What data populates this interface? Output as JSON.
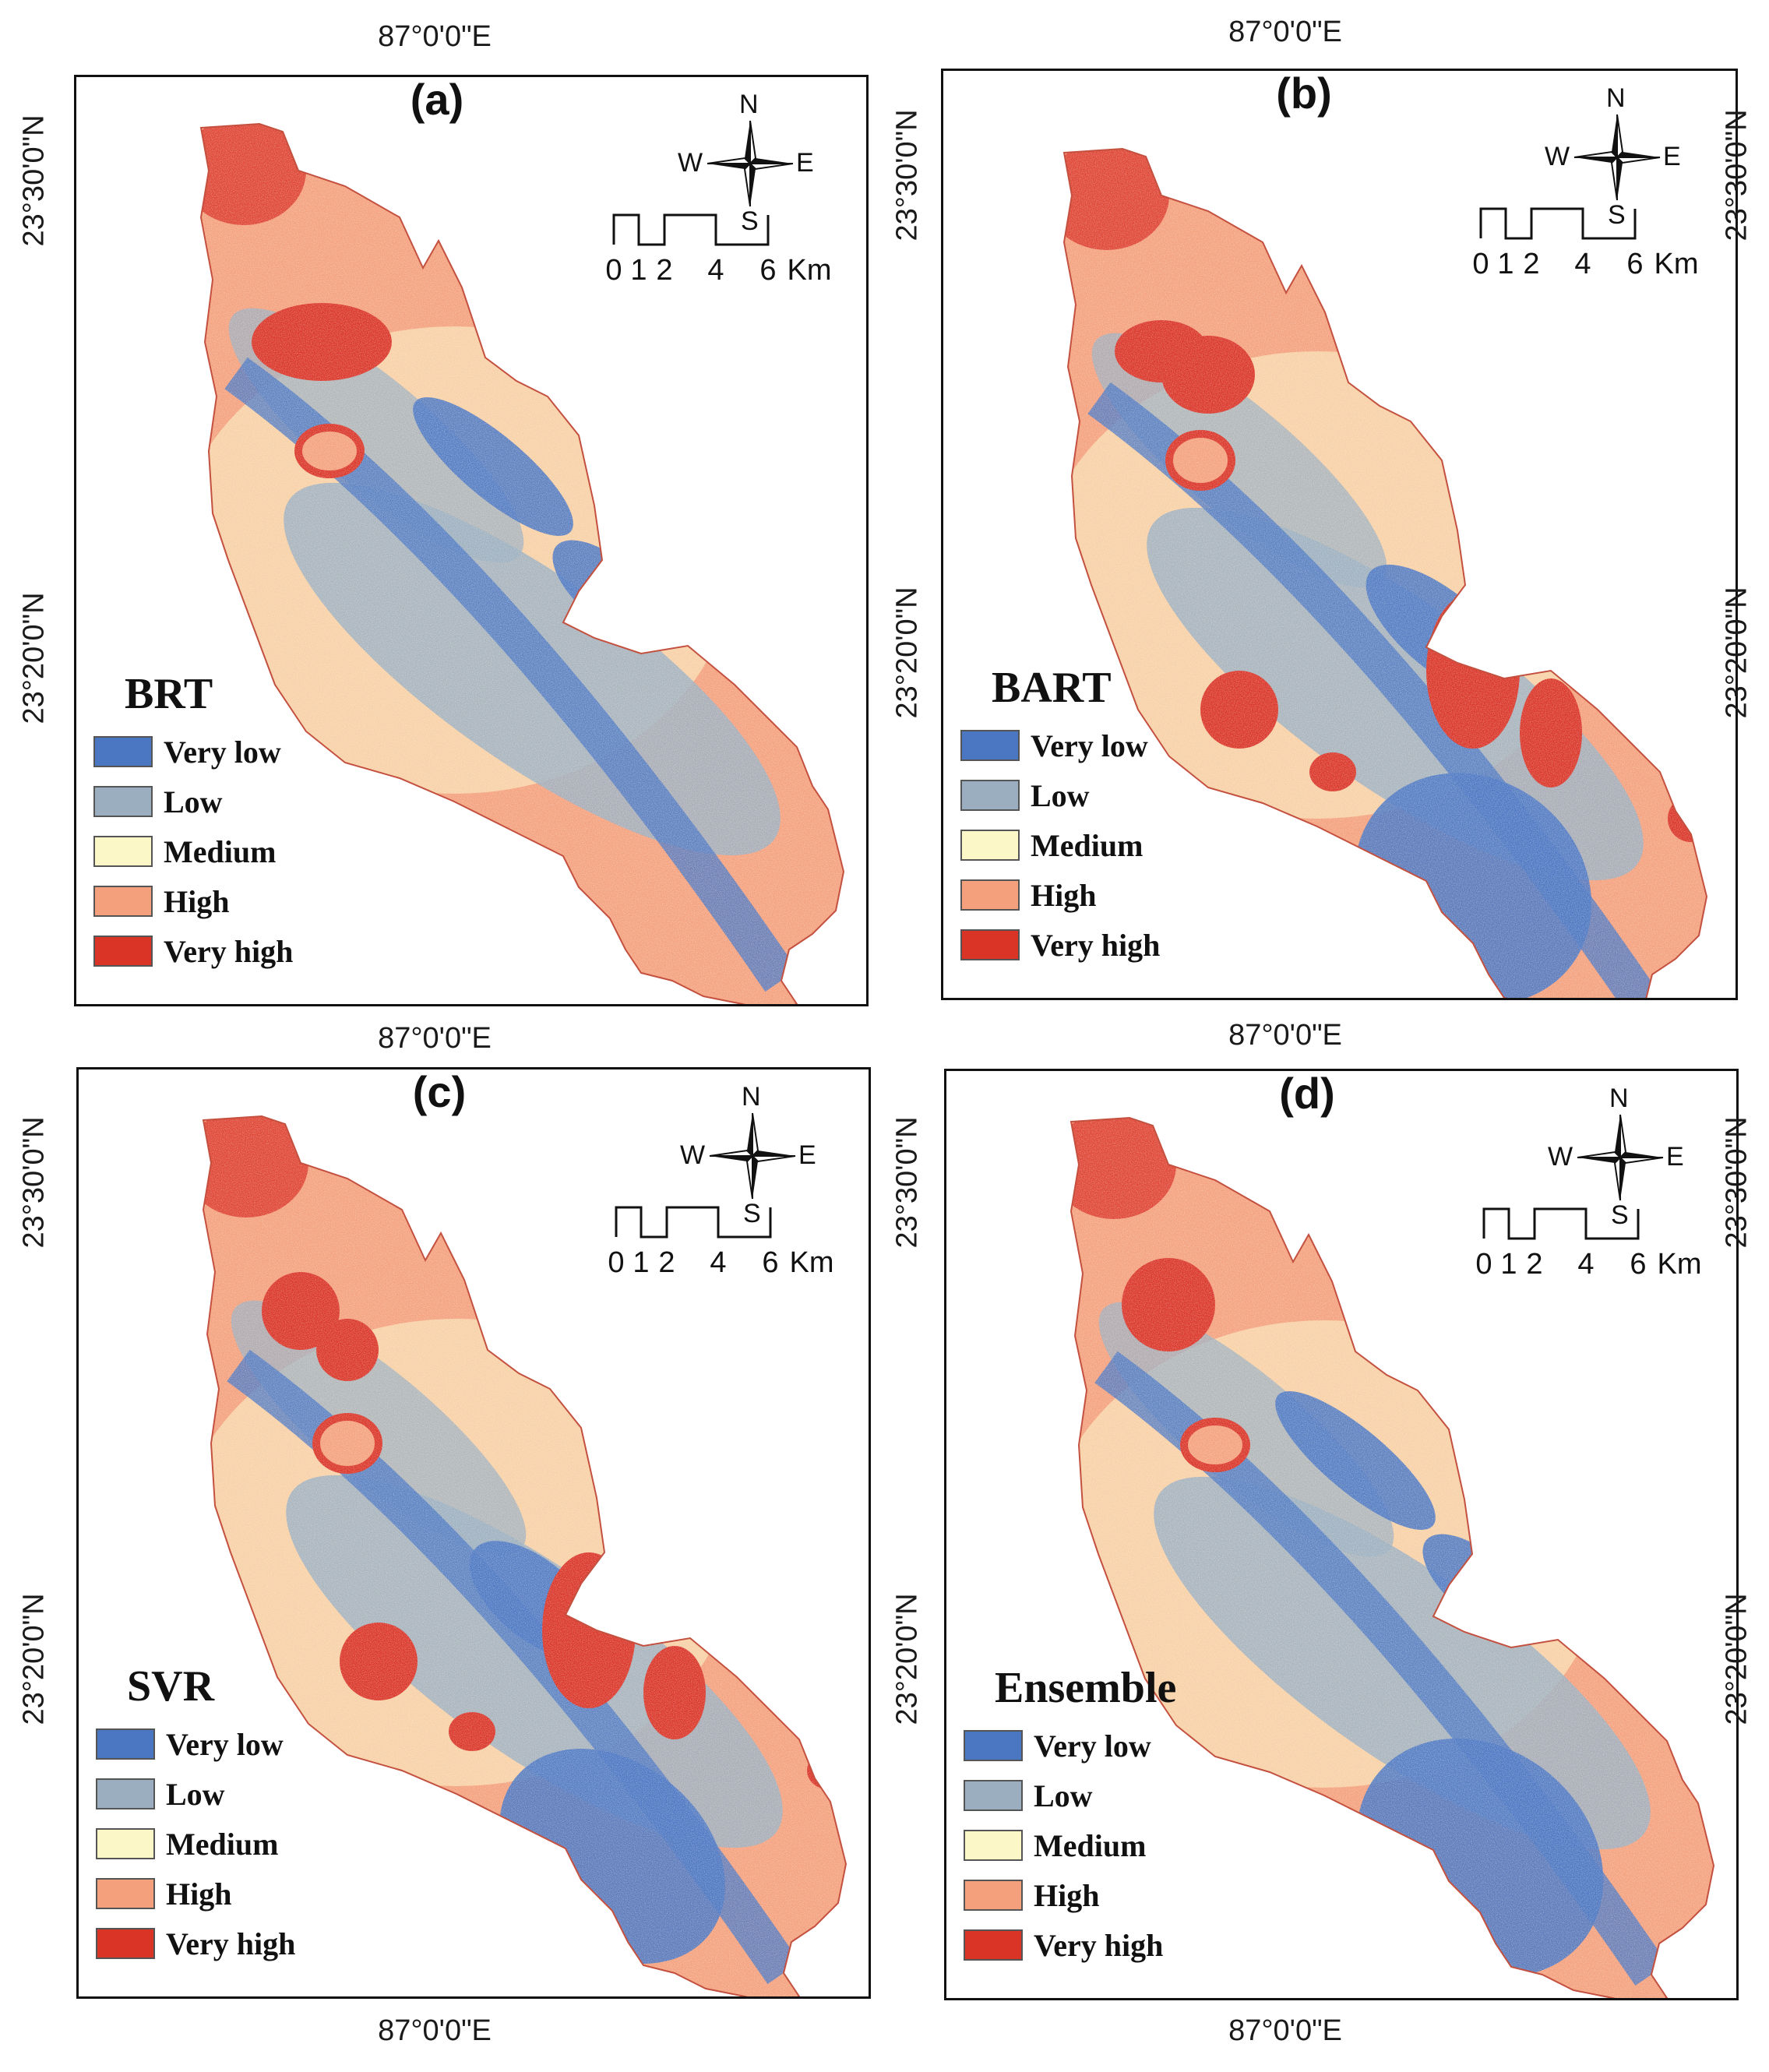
{
  "classes": [
    {
      "label": "Very low",
      "color": "#4a76c2"
    },
    {
      "label": "Low",
      "color": "#9aaebf"
    },
    {
      "label": "Medium",
      "color": "#fbf7c6"
    },
    {
      "label": "High",
      "color": "#f4a07c"
    },
    {
      "label": "Very high",
      "color": "#da3427"
    }
  ],
  "panels": [
    {
      "id": "a",
      "label": "(a)",
      "model": "BRT",
      "lon_top": "87°0'0\"E",
      "lon_bottom": "87°0'0\"E",
      "lat_upper": "23°30'0\"N",
      "lat_lower": "23°20'0\"N"
    },
    {
      "id": "b",
      "label": "(b)",
      "model": "BART",
      "lon_top": "87°0'0\"E",
      "lon_bottom": "87°0'0\"E",
      "lat_upper": "23°30'0\"N",
      "lat_lower": "23°20'0\"N"
    },
    {
      "id": "c",
      "label": "(c)",
      "model": "SVR",
      "lon_top": "87°0'0\"E",
      "lon_bottom": "87°0'0\"E",
      "lat_upper": "23°30'0\"N",
      "lat_lower": "23°20'0\"N"
    },
    {
      "id": "d",
      "label": "(d)",
      "model": "Ensemble",
      "lon_top": "87°0'0\"E",
      "lon_bottom": "87°0'0\"E",
      "lat_upper": "23°30'0\"N",
      "lat_lower": "23°20'0\"N"
    }
  ],
  "compass": {
    "n": "N",
    "s": "S",
    "e": "E",
    "w": "W"
  },
  "scale_bar": {
    "ticks": [
      "0",
      "1",
      "2",
      "4",
      "6"
    ],
    "unit": "Km"
  }
}
